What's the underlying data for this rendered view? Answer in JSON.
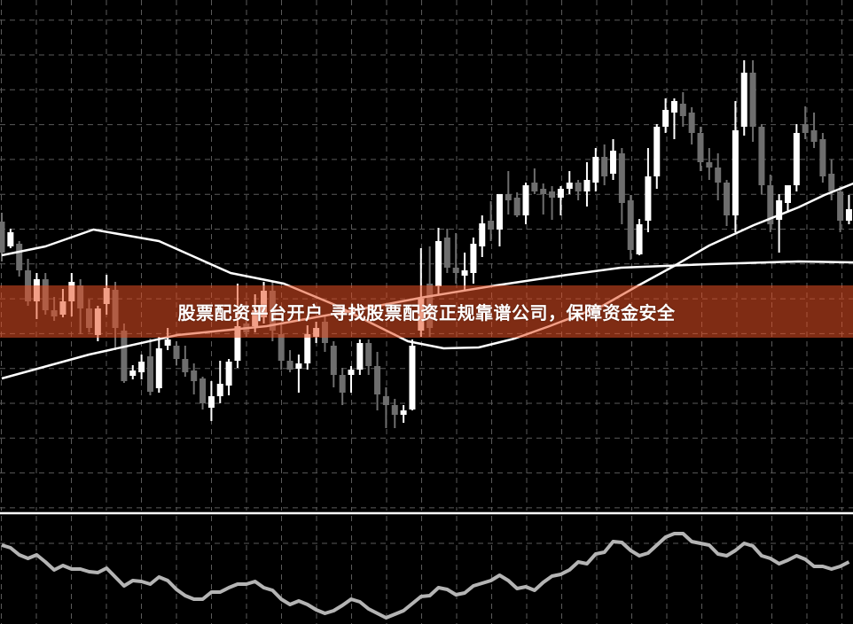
{
  "banner": {
    "text": "股票配资平台开户 寻找股票配资正规靠谱公司，保障资金安全",
    "color": "#e75024"
  },
  "chart_data": {
    "type": "candlestick",
    "title": "",
    "grid": true,
    "colors": {
      "background": "#000000",
      "bull": "#ffffff",
      "bear": "#6e6e6e",
      "grid": "#5a5a5a",
      "moving_average": "#ffffff",
      "oscillator": "#b4b4b4"
    },
    "candles": [
      [
        35.0,
        36.0,
        30.5,
        31.5
      ],
      [
        32.2,
        34.2,
        32.0,
        33.8
      ],
      [
        32.5,
        32.8,
        28.8,
        29.5
      ],
      [
        29.5,
        30.8,
        25.5,
        26.0
      ],
      [
        26.0,
        29.2,
        24.0,
        28.5
      ],
      [
        28.5,
        29.2,
        24.5,
        25.0
      ],
      [
        25.0,
        26.5,
        23.8,
        24.3
      ],
      [
        24.5,
        27.4,
        24.2,
        26.0
      ],
      [
        26.0,
        29.2,
        24.3,
        28.2
      ],
      [
        27.8,
        28.5,
        22.3,
        25.2
      ],
      [
        25.2,
        26.2,
        22.5,
        23.0
      ],
      [
        22.2,
        25.5,
        21.5,
        25.2
      ],
      [
        25.7,
        29.0,
        24.5,
        27.5
      ],
      [
        27.3,
        28.2,
        20.5,
        23.0
      ],
      [
        22.7,
        23.5,
        16.8,
        17.0
      ],
      [
        17.6,
        18.8,
        17.2,
        18.2
      ],
      [
        18.0,
        20.0,
        17.2,
        19.2
      ],
      [
        19.8,
        21.8,
        15.4,
        15.8
      ],
      [
        16.2,
        22.0,
        15.7,
        20.7
      ],
      [
        21.0,
        23.0,
        20.5,
        21.7
      ],
      [
        21.0,
        21.5,
        18.8,
        19.5
      ],
      [
        19.5,
        21.0,
        17.5,
        18.0
      ],
      [
        18.2,
        19.0,
        15.5,
        17.0
      ],
      [
        17.3,
        17.5,
        13.8,
        14.5
      ],
      [
        14.0,
        17.0,
        12.5,
        15.3
      ],
      [
        15.3,
        19.3,
        14.5,
        16.7
      ],
      [
        16.5,
        19.5,
        15.4,
        19.2
      ],
      [
        19.3,
        28.0,
        18.5,
        23.2
      ],
      [
        23.5,
        26.0,
        22.0,
        22.5
      ],
      [
        23.2,
        26.8,
        22.5,
        25.0
      ],
      [
        24.2,
        28.2,
        23.5,
        27.2
      ],
      [
        27.2,
        28.2,
        21.5,
        22.7
      ],
      [
        22.3,
        23.5,
        18.3,
        19.3
      ],
      [
        19.3,
        20.5,
        18.0,
        18.3
      ],
      [
        18.4,
        20.0,
        15.7,
        19.0
      ],
      [
        19.0,
        23.3,
        18.3,
        22.3
      ],
      [
        22.0,
        23.7,
        21.3,
        23.0
      ],
      [
        23.7,
        24.5,
        20.3,
        21.3
      ],
      [
        21.0,
        21.5,
        16.3,
        17.7
      ],
      [
        17.7,
        18.5,
        14.3,
        15.7
      ],
      [
        17.7,
        18.7,
        15.7,
        18.3
      ],
      [
        18.3,
        21.7,
        17.7,
        21.3
      ],
      [
        21.3,
        21.7,
        17.7,
        18.7
      ],
      [
        18.7,
        20.3,
        13.7,
        15.5
      ],
      [
        15.3,
        16.3,
        11.7,
        14.3
      ],
      [
        14.3,
        15.0,
        11.7,
        13.2
      ],
      [
        13.2,
        14.3,
        12.3,
        13.7
      ],
      [
        13.8,
        21.7,
        13.7,
        21.0
      ],
      [
        22.7,
        32.0,
        22.0,
        26.3
      ],
      [
        28.0,
        32.2,
        22.0,
        23.0
      ],
      [
        27.7,
        34.3,
        26.7,
        32.8
      ],
      [
        33.2,
        34.2,
        29.2,
        29.8
      ],
      [
        29.8,
        33.7,
        28.0,
        29.2
      ],
      [
        28.9,
        31.5,
        27.3,
        29.5
      ],
      [
        29.2,
        33.2,
        28.0,
        32.5
      ],
      [
        32.2,
        35.7,
        31.0,
        34.8
      ],
      [
        35.1,
        37.3,
        32.8,
        34.1
      ],
      [
        34.1,
        38.1,
        32.2,
        38.1
      ],
      [
        38.1,
        40.7,
        35.8,
        37.4
      ],
      [
        37.7,
        38.3,
        35.5,
        35.7
      ],
      [
        35.7,
        39.4,
        34.7,
        39.1
      ],
      [
        39.4,
        41.0,
        38.1,
        38.4
      ],
      [
        38.7,
        39.3,
        35.8,
        38.1
      ],
      [
        38.4,
        39.0,
        35.2,
        37.7
      ],
      [
        37.7,
        39.0,
        35.7,
        38.7
      ],
      [
        38.7,
        40.7,
        38.1,
        39.4
      ],
      [
        39.4,
        39.7,
        37.4,
        38.4
      ],
      [
        38.4,
        41.7,
        36.7,
        39.7
      ],
      [
        39.4,
        43.3,
        38.4,
        42.3
      ],
      [
        42.3,
        43.7,
        39.1,
        40.1
      ],
      [
        40.4,
        44.3,
        39.7,
        43.0
      ],
      [
        42.7,
        43.3,
        34.7,
        37.1
      ],
      [
        37.4,
        38.0,
        30.7,
        31.8
      ],
      [
        31.3,
        35.3,
        31.2,
        34.7
      ],
      [
        35.1,
        43.3,
        33.8,
        40.1
      ],
      [
        40.1,
        46.0,
        38.7,
        45.7
      ],
      [
        45.7,
        48.9,
        45.0,
        47.6
      ],
      [
        47.3,
        48.9,
        44.3,
        48.6
      ],
      [
        48.3,
        49.6,
        45.7,
        46.9
      ],
      [
        47.3,
        47.9,
        43.7,
        45.0
      ],
      [
        45.0,
        45.7,
        40.7,
        41.7
      ],
      [
        41.7,
        43.3,
        39.7,
        41.1
      ],
      [
        41.1,
        42.7,
        37.4,
        39.4
      ],
      [
        39.4,
        39.7,
        34.5,
        35.7
      ],
      [
        35.7,
        48.6,
        33.8,
        45.3
      ],
      [
        45.7,
        53.2,
        44.7,
        51.8
      ],
      [
        51.8,
        53.2,
        44.0,
        45.7
      ],
      [
        45.7,
        46.0,
        38.1,
        39.1
      ],
      [
        39.1,
        40.3,
        33.8,
        34.7
      ],
      [
        35.2,
        38.1,
        31.5,
        37.4
      ],
      [
        37.1,
        39.1,
        36.1,
        39.1
      ],
      [
        39.1,
        46.0,
        38.4,
        45.0
      ],
      [
        46.0,
        48.0,
        44.3,
        45.0
      ],
      [
        45.3,
        47.3,
        43.3,
        44.0
      ],
      [
        44.3,
        45.0,
        39.4,
        40.1
      ],
      [
        40.4,
        42.0,
        37.4,
        38.4
      ],
      [
        38.4,
        39.0,
        33.8,
        35.1
      ],
      [
        35.1,
        38.0,
        34.7,
        36.4
      ]
    ],
    "candle_fields": [
      "open",
      "high",
      "low",
      "close"
    ],
    "moving_averages": [
      [
        [
          0,
          31.2
        ],
        [
          5,
          32.2
        ],
        [
          10.5,
          34.1
        ],
        [
          18,
          32.8
        ],
        [
          26.2,
          29.2
        ],
        [
          32.3,
          28.0
        ],
        [
          38.4,
          25.5
        ],
        [
          42.4,
          23.5
        ],
        [
          46.5,
          21.5
        ],
        [
          50.6,
          20.7
        ],
        [
          54.6,
          20.8
        ],
        [
          58.7,
          21.8
        ],
        [
          62.7,
          23.2
        ],
        [
          68.8,
          25.5
        ],
        [
          72.9,
          27.8
        ],
        [
          77,
          30.0
        ],
        [
          81,
          32.3
        ],
        [
          86.1,
          34.6
        ],
        [
          91.2,
          36.6
        ],
        [
          94.2,
          38.0
        ],
        [
          97.5,
          39.3
        ]
      ],
      [
        [
          0,
          17.3
        ],
        [
          10,
          20.0
        ],
        [
          20.1,
          22.2
        ],
        [
          30.3,
          23.2
        ],
        [
          40.4,
          25.0
        ],
        [
          48.5,
          26.5
        ],
        [
          56.6,
          27.8
        ],
        [
          64.8,
          29.0
        ],
        [
          70.9,
          29.8
        ],
        [
          81,
          30.2
        ],
        [
          91.2,
          30.5
        ],
        [
          97.5,
          30.4
        ]
      ]
    ],
    "oscillator": [
      85,
      82,
      74,
      70,
      74,
      66,
      57,
      62,
      58,
      58,
      55,
      54,
      59,
      49,
      39,
      45,
      44,
      41,
      49,
      45,
      35,
      28,
      24,
      24,
      32,
      32,
      37,
      41,
      41,
      44,
      37,
      34,
      24,
      18,
      22,
      18,
      12,
      8,
      11,
      17,
      24,
      21,
      13,
      8,
      3,
      7,
      11,
      19,
      27,
      28,
      37,
      35,
      29,
      31,
      39,
      42,
      45,
      51,
      45,
      36,
      38,
      34,
      43,
      50,
      52,
      57,
      66,
      64,
      75,
      77,
      89,
      88,
      79,
      73,
      76,
      85,
      94,
      98,
      98,
      89,
      87,
      85,
      75,
      73,
      79,
      87,
      84,
      73,
      70,
      64,
      68,
      73,
      69,
      61,
      61,
      58,
      61,
      66
    ]
  }
}
